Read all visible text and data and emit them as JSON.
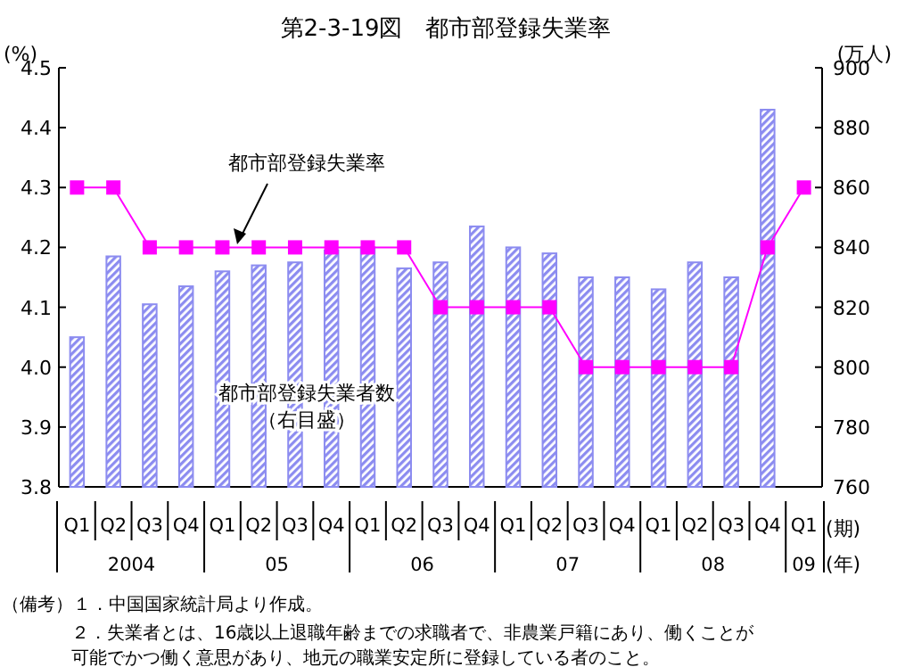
{
  "chart_data": {
    "type": "bar",
    "title": "第2-3-19図　都市部登録失業率",
    "ylabel": "(%)",
    "y2label": "(万人)",
    "categories": [
      "Q1",
      "Q2",
      "Q3",
      "Q4",
      "Q1",
      "Q2",
      "Q3",
      "Q4",
      "Q1",
      "Q2",
      "Q3",
      "Q4",
      "Q1",
      "Q2",
      "Q3",
      "Q4",
      "Q1",
      "Q2",
      "Q3",
      "Q4",
      "Q1"
    ],
    "series": [
      {
        "name": "都市部登録失業者数",
        "axis": "y2",
        "color": "#8c8cf0",
        "values": [
          810,
          837,
          821,
          827,
          832,
          834,
          835,
          839,
          840,
          833,
          835,
          847,
          840,
          838,
          830,
          830,
          826,
          835,
          830,
          886,
          null
        ]
      },
      {
        "name": "都市部登録失業率",
        "type": "line",
        "color": "#ff00ff",
        "marker": "square",
        "values": [
          4.3,
          4.3,
          4.2,
          4.2,
          4.2,
          4.2,
          4.2,
          4.2,
          4.2,
          4.2,
          4.1,
          4.1,
          4.1,
          4.1,
          4.0,
          4.0,
          4.0,
          4.0,
          4.0,
          4.2,
          4.3
        ]
      }
    ],
    "ylim": [
      3.8,
      4.5
    ],
    "yticks": [
      {
        "value": 3.8,
        "label": "3.8"
      },
      {
        "value": 3.9,
        "label": "3.9"
      },
      {
        "value": 4.0,
        "label": "4.0"
      },
      {
        "value": 4.1,
        "label": "4.1"
      },
      {
        "value": 4.2,
        "label": "4.2"
      },
      {
        "value": 4.3,
        "label": "4.3"
      },
      {
        "value": 4.4,
        "label": "4.4"
      },
      {
        "value": 4.5,
        "label": "4.5"
      }
    ],
    "y2lim": [
      760,
      900
    ],
    "y2ticks": [
      760,
      780,
      800,
      820,
      840,
      860,
      880,
      900
    ],
    "legend": false,
    "grid": false,
    "annotations": [
      "2004",
      "05",
      "06",
      "07",
      "08",
      "09",
      "(期)",
      "(年)",
      "（右目盛）",
      "（備考）１．中国国家統計局より作成。",
      "２．失業者とは、16歳以上退職年齢までの求職者で、非農業戸籍にあり、働くことが",
      "可能でかつ働く意思があり、地元の職業安定所に登録している者のこと。"
    ]
  }
}
